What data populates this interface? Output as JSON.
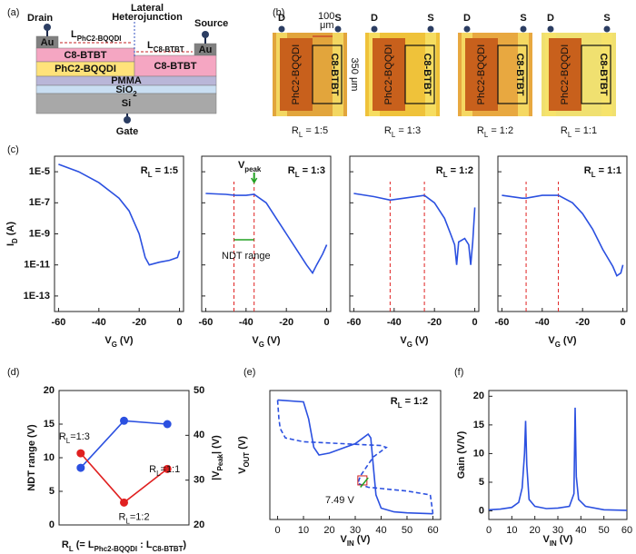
{
  "panel_labels": [
    "(a)",
    "(b)",
    "(c)",
    "(d)",
    "(e)",
    "(f)"
  ],
  "diagram": {
    "drain": "Drain",
    "source": "Source",
    "junction": [
      "Lateral",
      "Heterojunction"
    ],
    "l_left": [
      "L",
      "PhC2-BQQDI"
    ],
    "l_right": [
      "L",
      "C8-BTBT"
    ],
    "au": "Au",
    "top_left": "C8-BTBT",
    "mid_left": "PhC2-BQQDI",
    "mid_right": "C8-BTBT",
    "pmma": "PMMA",
    "sio2": [
      "SiO",
      "2"
    ],
    "si": "Si",
    "gate": "Gate"
  },
  "micrographs": {
    "drain": "D",
    "source": "S",
    "left_material": "PhC2-BQQDI",
    "right_material": "C8-BTBT",
    "scale_x": [
      "100",
      "μm"
    ],
    "scale_y": "350 μm",
    "captions": [
      [
        "R",
        "L",
        " = 1:5"
      ],
      [
        "R",
        "L",
        " = 1:3"
      ],
      [
        "R",
        "L",
        " = 1:2"
      ],
      [
        "R",
        "L",
        " = 1:1"
      ]
    ]
  },
  "chart_data": [
    {
      "type": "line",
      "ylog": true,
      "title": [
        "R",
        "L",
        " = 1:5"
      ],
      "ylabel": [
        "I",
        "D",
        " (A)"
      ],
      "xlabel": [
        "V",
        "G",
        " (V)"
      ],
      "xlim": [
        -62,
        2
      ],
      "xticks": [
        -60,
        -40,
        -20,
        0
      ],
      "ylim": [
        1e-14,
        0.0001
      ],
      "yticks": [
        {
          "value": 1e-05,
          "label": "1E-5"
        },
        {
          "value": 1e-07,
          "label": "1E-7"
        },
        {
          "value": 1e-09,
          "label": "1E-9"
        },
        {
          "value": 1e-11,
          "label": "1E-11"
        },
        {
          "value": 1e-13,
          "label": "1E-13"
        }
      ],
      "x": [
        -60,
        -50,
        -40,
        -30,
        -25,
        -20,
        -17,
        -15,
        -10,
        -5,
        -1,
        0
      ],
      "series": [
        {
          "color": "#2b50e0",
          "values": [
            3e-05,
            1e-05,
            2e-06,
            2e-07,
            3e-08,
            1e-09,
            3e-11,
            1e-11,
            1.5e-11,
            2e-11,
            3e-11,
            8e-11
          ]
        }
      ]
    },
    {
      "type": "line",
      "ylog": true,
      "ytick_labels": false,
      "title": [
        "R",
        "L",
        " = 1:3"
      ],
      "xlabel": [
        "V",
        "G",
        " (V)"
      ],
      "xlim": [
        -62,
        2
      ],
      "xticks": [
        -60,
        -40,
        -20,
        0
      ],
      "ylim": [
        1e-14,
        0.0001
      ],
      "yticks": [
        1e-05,
        1e-07,
        1e-09,
        1e-11,
        1e-13
      ],
      "x": [
        -60,
        -50,
        -45,
        -40,
        -36,
        -30,
        -25,
        -20,
        -15,
        -10,
        -7,
        -5,
        -2,
        0
      ],
      "series": [
        {
          "color": "#2b50e0",
          "values": [
            4e-07,
            3.5e-07,
            3e-07,
            3e-07,
            3.5e-07,
            1e-07,
            1e-08,
            1e-09,
            1e-10,
            1e-11,
            3e-12,
            1e-11,
            5e-11,
            2e-10
          ]
        }
      ],
      "vlines": [
        -46,
        -36
      ],
      "vline_color": "#e02020",
      "annotations": [
        [
          "V",
          "peak"
        ],
        "NDT range"
      ],
      "annotation_color": "#22a022"
    },
    {
      "type": "line",
      "ylog": true,
      "ytick_labels": false,
      "title": [
        "R",
        "L",
        " = 1:2"
      ],
      "xlabel": [
        "V",
        "G",
        " (V)"
      ],
      "xlim": [
        -62,
        2
      ],
      "xticks": [
        -60,
        -40,
        -20,
        0
      ],
      "ylim": [
        1e-14,
        0.0001
      ],
      "yticks": [
        1e-05,
        1e-07,
        1e-09,
        1e-11,
        1e-13
      ],
      "x": [
        -60,
        -50,
        -42,
        -35,
        -25,
        -20,
        -15,
        -12,
        -10,
        -9,
        -8,
        -5,
        -3,
        -2,
        -1,
        0
      ],
      "series": [
        {
          "color": "#2b50e0",
          "values": [
            4e-07,
            2.5e-07,
            1.5e-07,
            2e-07,
            3e-07,
            1e-07,
            1e-08,
            1e-09,
            2e-10,
            1e-11,
            3e-10,
            5e-10,
            2e-10,
            1e-11,
            3e-10,
            5e-08
          ]
        }
      ],
      "vlines": [
        -42,
        -25
      ],
      "vline_color": "#e02020"
    },
    {
      "type": "line",
      "ylog": true,
      "ytick_labels": false,
      "title": [
        "R",
        "L",
        " = 1:1"
      ],
      "xlabel": [
        "V",
        "G",
        " (V)"
      ],
      "xlim": [
        -62,
        2
      ],
      "xticks": [
        -60,
        -40,
        -20,
        0
      ],
      "ylim": [
        1e-14,
        0.0001
      ],
      "yticks": [
        1e-05,
        1e-07,
        1e-09,
        1e-11,
        1e-13
      ],
      "x": [
        -60,
        -50,
        -48,
        -40,
        -32,
        -25,
        -20,
        -15,
        -10,
        -5,
        -3,
        -1,
        0
      ],
      "series": [
        {
          "color": "#2b50e0",
          "values": [
            3e-07,
            2e-07,
            2e-07,
            3e-07,
            3e-07,
            1e-07,
            2e-08,
            2e-09,
            1e-10,
            8e-12,
            2e-12,
            3e-12,
            1e-11
          ]
        }
      ],
      "vlines": [
        -48,
        -32
      ],
      "vline_color": "#e02020"
    },
    {
      "type": "line",
      "categories": [
        null,
        null,
        null
      ],
      "ylabel": "NDT range (V)",
      "ylabel_color": "#2b50e0",
      "y2label": [
        "|V",
        "Peak",
        "| (V)"
      ],
      "y2label_color": "#e02020",
      "xlabel": [
        "R",
        "L",
        " (= L",
        "Phc2-BQQDI",
        " : L",
        "C8-BTBT",
        ")"
      ],
      "ylim": [
        0,
        20
      ],
      "yticks": [
        0,
        5,
        10,
        15,
        20
      ],
      "y2lim": [
        20,
        50
      ],
      "y2ticks": [
        20,
        30,
        40,
        50
      ],
      "markers": true,
      "series": [
        {
          "color": "#2b50e0",
          "values": [
            8.5,
            15.5,
            15
          ]
        },
        {
          "color": "#e02020",
          "axis": "y2",
          "values": [
            36,
            25,
            32.5
          ]
        }
      ],
      "annotations": [
        [
          "R",
          "L",
          "=1:3"
        ],
        [
          "R",
          "L",
          "=1:2"
        ],
        [
          "R",
          "L",
          "=1:1"
        ]
      ]
    },
    {
      "type": "line",
      "title": [
        "R",
        "L",
        " = 1:2"
      ],
      "ylabel": [
        "V",
        "OUT",
        " (V)"
      ],
      "xlabel": [
        "V",
        "IN",
        " (V)"
      ],
      "xlim": [
        -3,
        63
      ],
      "xticks": [
        0,
        10,
        20,
        30,
        40,
        50,
        60
      ],
      "ylim": [
        -3,
        65
      ],
      "series": [
        {
          "color": "#2b50e0",
          "x": [
            0,
            10,
            12,
            14,
            16,
            20,
            30,
            35,
            36,
            37,
            38,
            40,
            45,
            50,
            60
          ],
          "values": [
            60,
            59,
            50,
            35,
            31,
            32,
            37,
            42,
            40,
            25,
            10,
            3,
            1,
            0.5,
            0
          ]
        },
        {
          "color": "#2b50e0",
          "dashed": true,
          "x": [
            60,
            59,
            50,
            35,
            31,
            32,
            37,
            42,
            40,
            25,
            10,
            3,
            1,
            0.5,
            0
          ],
          "values": [
            0,
            10,
            12,
            14,
            16,
            20,
            30,
            35,
            36,
            37,
            38,
            40,
            45,
            50,
            60
          ]
        }
      ],
      "annotations": [
        "7.49 V"
      ],
      "annotation_color": "#22a022"
    },
    {
      "type": "line",
      "ylabel": "Gain (V/V)",
      "xlabel": [
        "V",
        "IN",
        " (V)"
      ],
      "xlim": [
        0,
        60
      ],
      "xticks": [
        0,
        10,
        20,
        30,
        40,
        50,
        60
      ],
      "ylim": [
        -1.5,
        21
      ],
      "yticks": [
        0,
        5,
        10,
        15,
        20
      ],
      "x": [
        0,
        5,
        10,
        13,
        14.5,
        15.5,
        16,
        16.5,
        17.5,
        20,
        25,
        30,
        35,
        37,
        37.5,
        38,
        39,
        42,
        50,
        60
      ],
      "series": [
        {
          "color": "#2b50e0",
          "values": [
            0.2,
            0.3,
            0.6,
            1.5,
            4,
            10,
            15.7,
            8,
            2,
            0.8,
            0.4,
            0.5,
            0.8,
            3,
            18,
            6,
            2,
            0.8,
            0.2,
            0.1
          ]
        }
      ]
    }
  ]
}
